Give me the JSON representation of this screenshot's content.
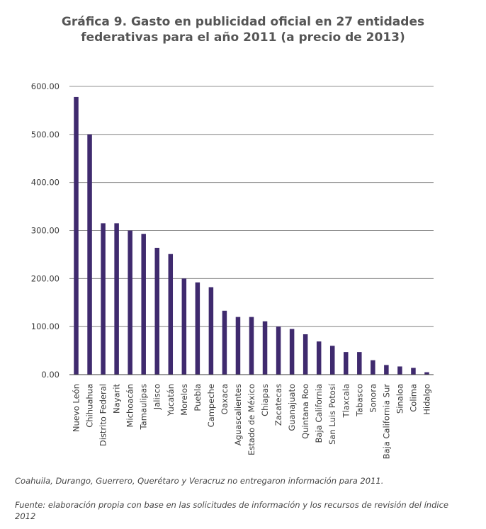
{
  "title_lines": [
    "Gráfica 9. Gasto en publicidad oficial en 27 entidades",
    "federativas para el año 2011 (a precio de 2013)"
  ],
  "chart_data": {
    "type": "bar",
    "title": "Gráfica 9. Gasto en publicidad oficial en 27 entidades federativas para el año 2011 (a precio de 2013)",
    "xlabel": "",
    "ylabel": "",
    "ylim": [
      0,
      600
    ],
    "yticks": [
      0,
      100,
      200,
      300,
      400,
      500,
      600
    ],
    "ytick_labels": [
      "0.00",
      "100.00",
      "200.00",
      "300.00",
      "400.00",
      "500.00",
      "600.00"
    ],
    "grid": true,
    "bar_color": "#3f2a6e",
    "categories": [
      "Nuevo León",
      "Chihuahua",
      "Distrito Federal",
      "Nayarit",
      "Michoacán",
      "Tamaulipas",
      "Jalisco",
      "Yucatán",
      "Morelos",
      "Puebla",
      "Campeche",
      "Oaxaca",
      "Aguascalientes",
      "Estado de México",
      "Chiapas",
      "Zacatecas",
      "Guanajuato",
      "Quintana Roo",
      "Baja California",
      "San Luis Potosí",
      "Tlaxcala",
      "Tabasco",
      "Sonora",
      "Baja California Sur",
      "Sinaloa",
      "Colima",
      "Hidalgo"
    ],
    "values": [
      578,
      500,
      315,
      315,
      300,
      293,
      264,
      251,
      200,
      192,
      182,
      133,
      120,
      120,
      111,
      100,
      95,
      84,
      69,
      60,
      47,
      47,
      30,
      20,
      17,
      14,
      5
    ]
  },
  "notes": {
    "missing": "Coahuila, Durango, Guerrero, Querétaro y Veracruz no entregaron información para 2011.",
    "source": "Fuente: elaboración propia con base en las solicitudes de información y los recursos de revisión del índice 2012"
  }
}
